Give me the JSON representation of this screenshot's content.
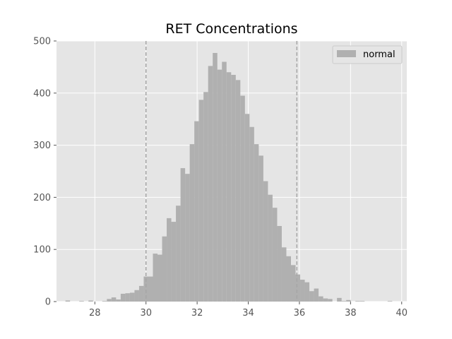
{
  "chart_data": {
    "type": "histogram",
    "title": "RET Concentrations",
    "xlabel": "",
    "ylabel": "",
    "xlim": [
      26.5,
      40.2
    ],
    "ylim": [
      0,
      500
    ],
    "grid": true,
    "legend_position": "top-right",
    "x_ticks": [
      "28",
      "30",
      "32",
      "34",
      "36",
      "38",
      "40"
    ],
    "y_ticks": [
      "0",
      "100",
      "200",
      "300",
      "400",
      "500"
    ],
    "reference_lines": [
      30.0,
      35.9
    ],
    "bin_width": 0.18,
    "series": [
      {
        "name": "normal",
        "color": "#b0b0b0",
        "bin_start": 26.85,
        "values": [
          2,
          0,
          0,
          1,
          0,
          2,
          0,
          0,
          1,
          5,
          8,
          4,
          15,
          16,
          17,
          22,
          30,
          48,
          48,
          92,
          90,
          125,
          160,
          153,
          184,
          256,
          245,
          302,
          346,
          387,
          402,
          452,
          477,
          445,
          460,
          440,
          435,
          425,
          395,
          360,
          335,
          302,
          280,
          231,
          205,
          180,
          145,
          104,
          87,
          70,
          52,
          42,
          37,
          20,
          25,
          10,
          6,
          5,
          0,
          7,
          1,
          3,
          0,
          1,
          1,
          0,
          0,
          0,
          0,
          0,
          1
        ]
      }
    ]
  },
  "colors": {
    "plot_background": "#e5e5e5",
    "grid": "#ffffff",
    "bar": "#b0b0b0",
    "reference_line": "#a6a6a6",
    "tick_text": "#555555"
  }
}
